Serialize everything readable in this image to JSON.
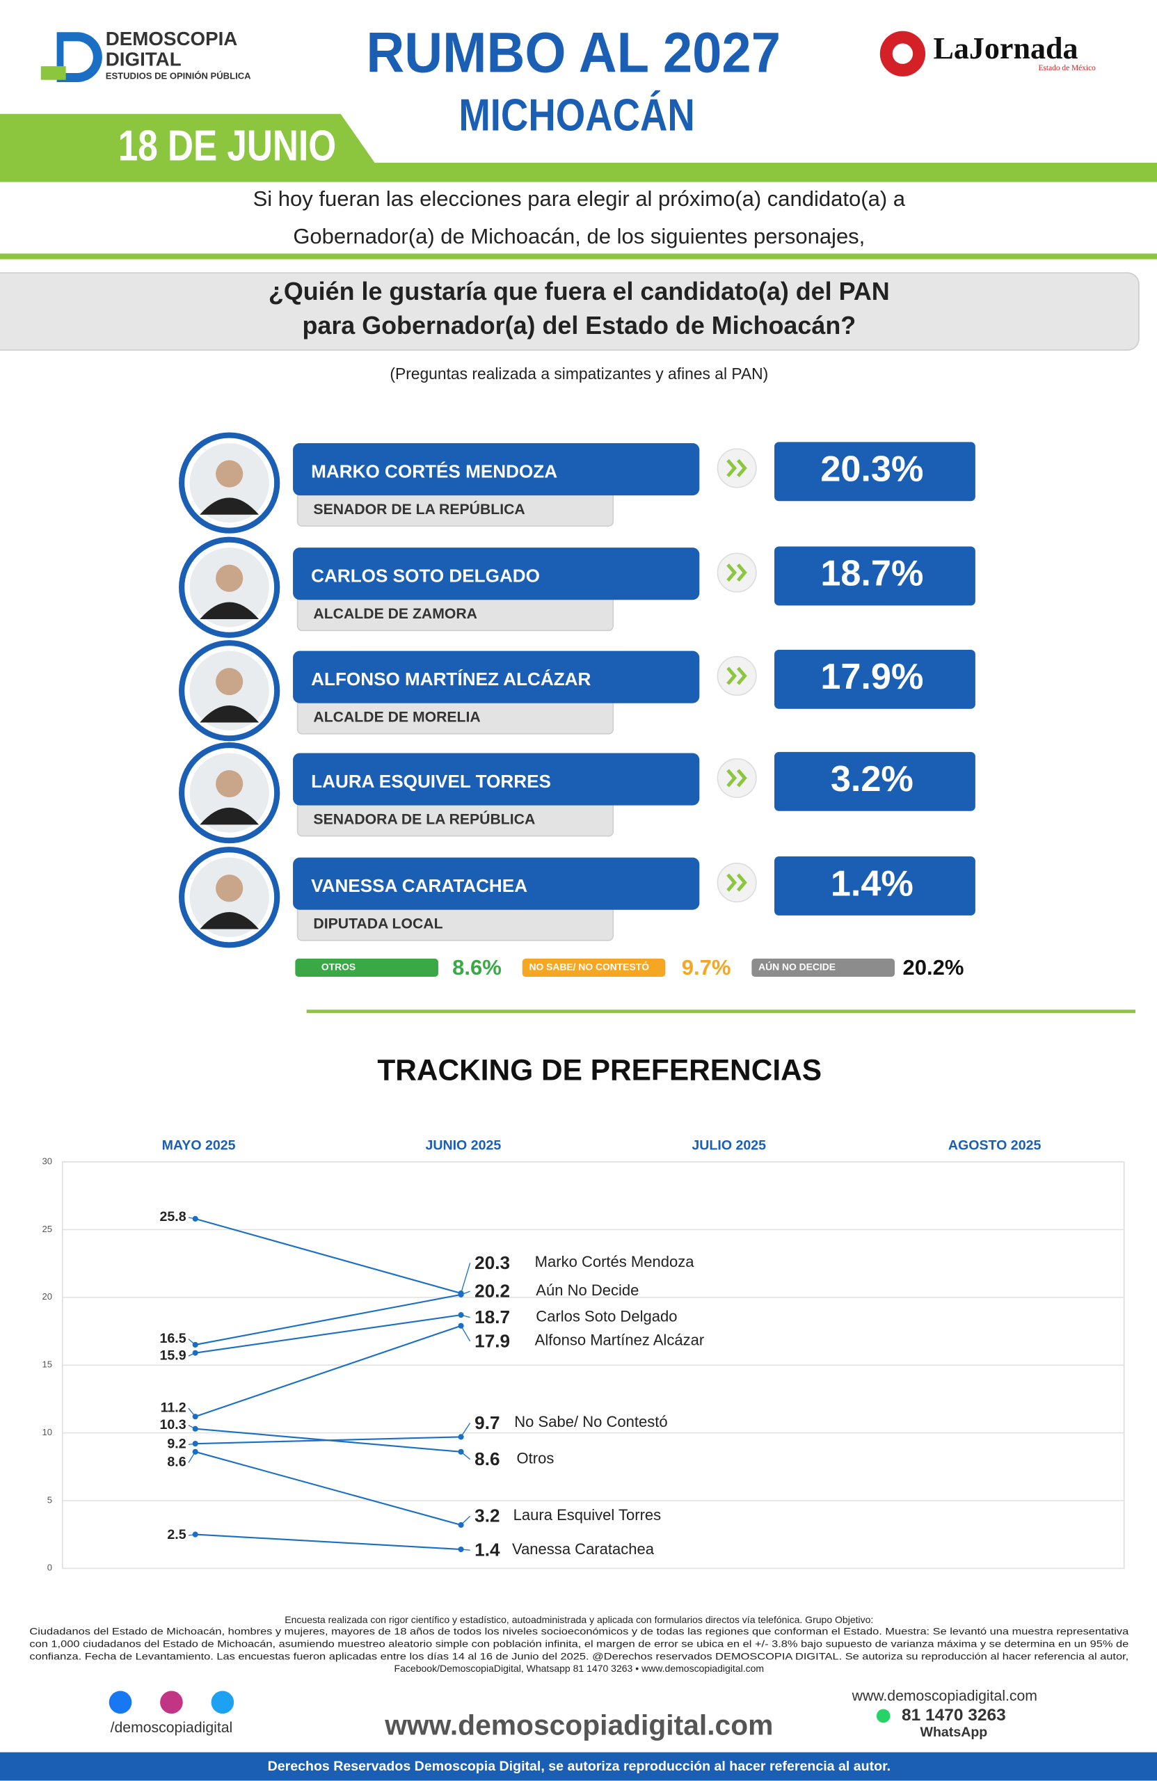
{
  "header": {
    "brand": "DEMOSCOPIA",
    "brand2": "DIGITAL",
    "brand_tag": "ESTUDIOS DE OPINIÓN PÚBLICA",
    "title": "RUMBO AL 2027",
    "subtitle": "MICHOACÁN",
    "date": "18 DE JUNIO",
    "partner": "LaJornada",
    "partner_tag": "Estado de México"
  },
  "intro": [
    "Si hoy fueran las elecciones para elegir al próximo(a) candidato(a) a",
    "Gobernador(a) de Michoacán, de los siguientes personajes,"
  ],
  "question": [
    "¿Quién le gustaría que fuera el candidato(a) del PAN",
    "para Gobernador(a) del Estado de Michoacán?"
  ],
  "question_note": "(Preguntas realizada a simpatizantes y afines al PAN)",
  "candidates": [
    {
      "name": "MARKO CORTÉS MENDOZA",
      "role": "SENADOR DE LA REPÚBLICA",
      "value": 20.3,
      "value_label": "20.3%"
    },
    {
      "name": "CARLOS SOTO DELGADO",
      "role": "ALCALDE DE ZAMORA",
      "value": 18.7,
      "value_label": "18.7%"
    },
    {
      "name": "ALFONSO MARTÍNEZ ALCÁZAR",
      "role": "ALCALDE DE MORELIA",
      "value": 17.9,
      "value_label": "17.9%"
    },
    {
      "name": "LAURA ESQUIVEL TORRES",
      "role": "SENADORA DE LA REPÚBLICA",
      "value": 3.2,
      "value_label": "3.2%"
    },
    {
      "name": "VANESSA CARATACHEA",
      "role": "DIPUTADA LOCAL",
      "value": 1.4,
      "value_label": "1.4%"
    }
  ],
  "others": [
    {
      "name": "OTROS",
      "value": 8.6,
      "value_label": "8.6%",
      "color": "#3aa845"
    },
    {
      "name": "NO SABE/ NO CONTESTÓ",
      "value": 9.7,
      "value_label": "9.7%",
      "color": "#f5a623"
    },
    {
      "name": "AÚN NO DECIDE",
      "value": 20.2,
      "value_label": "20.2%",
      "color": "#8c8c8c"
    }
  ],
  "chart_data": {
    "type": "line",
    "title": "TRACKING DE PREFERENCIAS",
    "categories": [
      "MAYO 2025",
      "JUNIO 2025",
      "JULIO 2025",
      "AGOSTO 2025"
    ],
    "ylim": [
      0,
      30
    ],
    "yticks": [
      0,
      5,
      10,
      15,
      20,
      25,
      30
    ],
    "grid": true,
    "series": [
      {
        "name": "Marko Cortés Mendoza",
        "color": "#1a6fc4",
        "values": [
          25.8,
          20.3,
          null,
          null
        ]
      },
      {
        "name": "Aún No Decide",
        "color": "#1a6fc4",
        "values": [
          16.5,
          20.2,
          null,
          null
        ]
      },
      {
        "name": "Carlos Soto Delgado",
        "color": "#1a6fc4",
        "values": [
          15.9,
          18.7,
          null,
          null
        ]
      },
      {
        "name": "Alfonso Martínez Alcázar",
        "color": "#1a6fc4",
        "values": [
          11.2,
          17.9,
          null,
          null
        ]
      },
      {
        "name": "No Sabe/ No Contestó",
        "color": "#1a6fc4",
        "values": [
          9.2,
          9.7,
          null,
          null
        ]
      },
      {
        "name": "Otros",
        "color": "#1a6fc4",
        "values": [
          10.3,
          8.6,
          null,
          null
        ]
      },
      {
        "name": "Laura Esquivel Torres",
        "color": "#1a6fc4",
        "values": [
          8.6,
          3.2,
          null,
          null
        ]
      },
      {
        "name": "Vanessa Caratachea",
        "color": "#1a6fc4",
        "values": [
          2.5,
          1.4,
          null,
          null
        ]
      }
    ]
  },
  "footer": {
    "notes": [
      "Encuesta realizada con rigor científico y estadístico, autoadministrada y aplicada con formularios directos vía telefónica. Grupo Objetivo:",
      "Ciudadanos del Estado de Michoacán, hombres y mujeres, mayores de 18 años de todos los niveles socioeconómicos y de todas las regiones que conforman el Estado. Muestra: Se levantó una muestra representativa",
      "con 1,000 ciudadanos del Estado de Michoacán, asumiendo muestreo aleatorio simple con población infinita, el margen de error se ubica en el +/- 3.8% bajo supuesto de varianza máxima y se determina en un 95% de",
      "confianza. Fecha de Levantamiento. Las encuestas fueron aplicadas entre los días 14 al 16 de Junio del 2025. @Derechos reservados DEMOSCOPIA DIGITAL. Se autoriza su reproducción al hacer referencia al autor,",
      "Facebook/DemoscopiaDigital, Whatsapp 81 1470 3263 • www.demoscopiadigital.com"
    ],
    "social": "/demoscopiadigital",
    "website": "www.demoscopiadigital.com",
    "site_small": "www.demoscopiadigital.com",
    "phone": "81 1470 3263",
    "whatsapp": "WhatsApp",
    "rights": "Derechos Reservados Demoscopia Digital, se autoriza reproducción al hacer referencia al autor."
  }
}
